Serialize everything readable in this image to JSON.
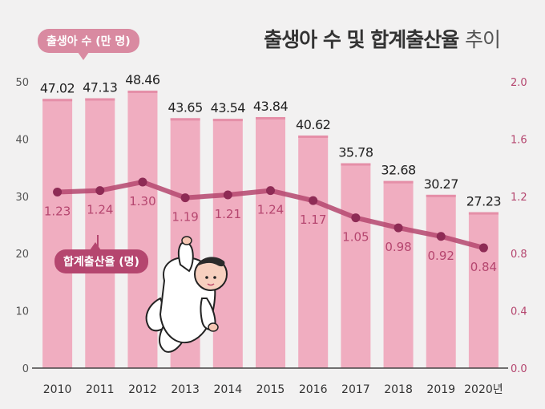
{
  "title": {
    "bold": "출생아 수 및 합계출산율",
    "light": "추이"
  },
  "legend": {
    "births_label": "출생아 수 (만 명)",
    "tfr_label": "합계출산율 (명)"
  },
  "colors": {
    "background": "#f2f1f1",
    "bar": "#f0adc0",
    "bar_top": "#e58fa8",
    "line": "#b5466f",
    "marker": "#8e2b55",
    "tfr_value_text": "#b5466f",
    "bar_value_text": "#222222",
    "right_axis_text": "#b5466f",
    "left_axis_text": "#555555"
  },
  "chart_data": {
    "type": "bar",
    "categories": [
      "2010",
      "2011",
      "2012",
      "2013",
      "2014",
      "2015",
      "2016",
      "2017",
      "2018",
      "2019",
      "2020년"
    ],
    "series": [
      {
        "name": "출생아 수 (만 명)",
        "type": "bar",
        "axis": "left",
        "values": [
          47.02,
          47.13,
          48.46,
          43.65,
          43.54,
          43.84,
          40.62,
          35.78,
          32.68,
          30.27,
          27.23
        ],
        "labels": [
          "47.02",
          "47.13",
          "48.46",
          "43.65",
          "43.54",
          "43.84",
          "40.62",
          "35.78",
          "32.68",
          "30.27",
          "27.23"
        ]
      },
      {
        "name": "합계출산율 (명)",
        "type": "line",
        "axis": "right",
        "values": [
          1.23,
          1.24,
          1.3,
          1.19,
          1.21,
          1.24,
          1.17,
          1.05,
          0.98,
          0.92,
          0.84
        ],
        "labels": [
          "1.23",
          "1.24",
          "1.30",
          "1.19",
          "1.21",
          "1.24",
          "1.17",
          "1.05",
          "0.98",
          "0.92",
          "0.84"
        ]
      }
    ],
    "left_axis": {
      "ylim": [
        0,
        50
      ],
      "ticks": [
        0,
        10,
        20,
        30,
        40,
        50
      ],
      "tick_labels": [
        "0",
        "10",
        "20",
        "30",
        "40",
        "50"
      ]
    },
    "right_axis": {
      "ylim": [
        0,
        2.0
      ],
      "ticks": [
        0,
        0.4,
        0.8,
        1.2,
        1.6,
        2.0
      ],
      "tick_labels": [
        "0.0",
        "0.4",
        "0.8",
        "1.2",
        "1.6",
        "2.0"
      ]
    },
    "grid": false,
    "illustration": "baby-illustration"
  }
}
